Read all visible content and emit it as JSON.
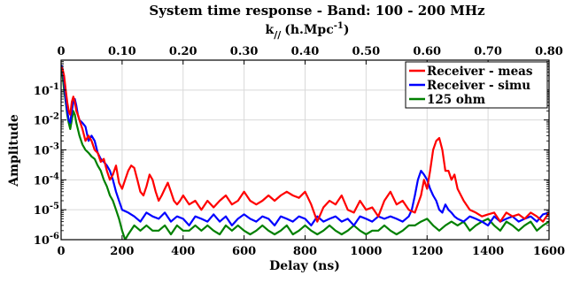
{
  "chart_data": {
    "type": "line",
    "title": "System time response - Band: 100 - 200 MHz",
    "xlabel": "Delay (ns)",
    "ylabel": "Amplitude",
    "top_axis_label_main": "k",
    "top_axis_label_sub": "//",
    "top_axis_label_unit": "(h.Mpc",
    "top_axis_label_exp": "-1",
    "top_axis_label_close": ")",
    "xlim": [
      0,
      1600
    ],
    "ylim": [
      1e-06,
      1
    ],
    "yscale": "log",
    "grid": true,
    "legend_position": "top-right",
    "x_ticks": [
      0,
      200,
      400,
      600,
      800,
      1000,
      1200,
      1400,
      1600
    ],
    "x_tick_labels": [
      "0",
      "200",
      "400",
      "600",
      "800",
      "1000",
      "1200",
      "1400",
      "1600"
    ],
    "top_ticks": [
      0,
      0.1,
      0.2,
      0.3,
      0.4,
      0.5,
      0.6,
      0.7,
      0.8
    ],
    "top_tick_labels": [
      "0",
      "0.10",
      "0.20",
      "0.30",
      "0.40",
      "0.50",
      "0.60",
      "0.70",
      "0.80"
    ],
    "y_ticks": [
      1e-06,
      1e-05,
      0.0001,
      0.001,
      0.01,
      0.1
    ],
    "y_tick_exponents": [
      "-6",
      "-5",
      "-4",
      "-3",
      "-2",
      "-1"
    ],
    "y_tick_base": "10",
    "series": [
      {
        "name": "Receiver - meas",
        "color": "#ff0000",
        "x": [
          0,
          5,
          10,
          15,
          20,
          25,
          30,
          35,
          40,
          45,
          50,
          55,
          60,
          70,
          80,
          90,
          100,
          110,
          120,
          130,
          140,
          150,
          160,
          170,
          180,
          190,
          200,
          210,
          220,
          230,
          240,
          250,
          260,
          270,
          280,
          290,
          300,
          310,
          320,
          330,
          340,
          350,
          360,
          370,
          380,
          390,
          400,
          420,
          440,
          460,
          480,
          500,
          520,
          540,
          560,
          580,
          600,
          620,
          640,
          660,
          680,
          700,
          720,
          740,
          760,
          780,
          800,
          820,
          840,
          860,
          880,
          900,
          920,
          940,
          960,
          980,
          1000,
          1020,
          1040,
          1060,
          1080,
          1100,
          1120,
          1140,
          1160,
          1180,
          1190,
          1200,
          1210,
          1220,
          1230,
          1240,
          1250,
          1260,
          1270,
          1280,
          1290,
          1300,
          1320,
          1340,
          1360,
          1380,
          1400,
          1420,
          1440,
          1460,
          1480,
          1500,
          1520,
          1540,
          1560,
          1580,
          1600
        ],
        "y": [
          0.6,
          0.5,
          0.3,
          0.1,
          0.04,
          0.02,
          0.015,
          0.04,
          0.06,
          0.04,
          0.02,
          0.015,
          0.01,
          0.005,
          0.002,
          0.003,
          0.002,
          0.001,
          0.0008,
          0.0004,
          0.0005,
          0.0002,
          0.0001,
          0.00015,
          0.0003,
          8e-05,
          5e-05,
          0.0001,
          0.0002,
          0.0003,
          0.00025,
          0.0001,
          4e-05,
          3e-05,
          6e-05,
          0.00015,
          0.0001,
          4e-05,
          2e-05,
          3e-05,
          5e-05,
          8e-05,
          4e-05,
          2e-05,
          1.5e-05,
          2e-05,
          3e-05,
          1.5e-05,
          2e-05,
          1e-05,
          2e-05,
          1.2e-05,
          2e-05,
          3e-05,
          1.5e-05,
          2e-05,
          4e-05,
          2e-05,
          1.5e-05,
          2e-05,
          3e-05,
          2e-05,
          3e-05,
          4e-05,
          3e-05,
          2.5e-05,
          4e-05,
          1.5e-05,
          4e-06,
          1.2e-05,
          2e-05,
          1.5e-05,
          3e-05,
          1e-05,
          8e-06,
          2e-05,
          1e-05,
          1.2e-05,
          6e-06,
          2e-05,
          4e-05,
          1.5e-05,
          2e-05,
          1e-05,
          8e-06,
          3e-05,
          0.0001,
          5e-05,
          0.0002,
          0.001,
          0.002,
          0.0025,
          0.001,
          0.0002,
          0.0002,
          0.0001,
          0.00015,
          5e-05,
          2e-05,
          1e-05,
          8e-06,
          6e-06,
          7e-06,
          8e-06,
          4e-06,
          8e-06,
          6e-06,
          7e-06,
          5e-06,
          8e-06,
          6e-06,
          4e-06,
          8e-06
        ]
      },
      {
        "name": "Receiver - simu",
        "color": "#0000ff",
        "x": [
          0,
          5,
          10,
          15,
          20,
          25,
          30,
          35,
          40,
          45,
          50,
          55,
          60,
          70,
          80,
          90,
          100,
          110,
          120,
          130,
          140,
          150,
          160,
          170,
          180,
          190,
          200,
          220,
          240,
          260,
          280,
          300,
          320,
          340,
          360,
          380,
          400,
          420,
          440,
          460,
          480,
          500,
          520,
          540,
          560,
          580,
          600,
          620,
          640,
          660,
          680,
          700,
          720,
          740,
          760,
          780,
          800,
          820,
          840,
          860,
          880,
          900,
          920,
          940,
          960,
          980,
          1000,
          1020,
          1040,
          1060,
          1080,
          1100,
          1120,
          1140,
          1150,
          1160,
          1170,
          1180,
          1190,
          1200,
          1210,
          1220,
          1230,
          1240,
          1250,
          1260,
          1270,
          1280,
          1290,
          1300,
          1320,
          1340,
          1360,
          1380,
          1400,
          1420,
          1440,
          1460,
          1480,
          1500,
          1520,
          1540,
          1560,
          1580,
          1600
        ],
        "y": [
          0.7,
          0.5,
          0.2,
          0.05,
          0.02,
          0.01,
          0.008,
          0.02,
          0.04,
          0.05,
          0.03,
          0.015,
          0.01,
          0.008,
          0.006,
          0.002,
          0.003,
          0.002,
          0.0008,
          0.0005,
          0.0004,
          0.0003,
          0.0002,
          0.0001,
          4e-05,
          2e-05,
          1e-05,
          8e-06,
          6e-06,
          4e-06,
          8e-06,
          6e-06,
          5e-06,
          8e-06,
          4e-06,
          6e-06,
          5e-06,
          3e-06,
          6e-06,
          5e-06,
          4e-06,
          7e-06,
          4e-06,
          6e-06,
          3e-06,
          5e-06,
          7e-06,
          5e-06,
          4e-06,
          6e-06,
          5e-06,
          3e-06,
          6e-06,
          5e-06,
          4e-06,
          6e-06,
          5e-06,
          3e-06,
          6e-06,
          4e-06,
          5e-06,
          6e-06,
          4e-06,
          5e-06,
          3e-06,
          6e-06,
          5e-06,
          4e-06,
          6e-06,
          5e-06,
          6e-06,
          5e-06,
          4e-06,
          6e-06,
          1e-05,
          3e-05,
          0.0001,
          0.0002,
          0.00015,
          0.0001,
          5e-05,
          3e-05,
          2e-05,
          1e-05,
          8e-06,
          1.5e-05,
          1e-05,
          8e-06,
          6e-06,
          5e-06,
          4e-06,
          6e-06,
          5e-06,
          4e-06,
          3e-06,
          6e-06,
          4e-06,
          5e-06,
          6e-06,
          4e-06,
          5e-06,
          6e-06,
          4e-06,
          7e-06,
          8e-06
        ]
      },
      {
        "name": "125 ohm",
        "color": "#008000",
        "x": [
          0,
          5,
          10,
          15,
          20,
          25,
          30,
          35,
          40,
          45,
          50,
          55,
          60,
          70,
          80,
          90,
          100,
          110,
          120,
          130,
          140,
          150,
          160,
          170,
          180,
          190,
          200,
          210,
          220,
          240,
          260,
          280,
          300,
          320,
          340,
          360,
          380,
          400,
          420,
          440,
          460,
          480,
          500,
          520,
          540,
          560,
          580,
          600,
          620,
          640,
          660,
          680,
          700,
          720,
          740,
          760,
          780,
          800,
          820,
          840,
          860,
          880,
          900,
          920,
          940,
          960,
          980,
          1000,
          1020,
          1040,
          1060,
          1080,
          1100,
          1120,
          1140,
          1160,
          1180,
          1200,
          1220,
          1240,
          1260,
          1280,
          1300,
          1320,
          1340,
          1360,
          1380,
          1400,
          1420,
          1440,
          1460,
          1480,
          1500,
          1520,
          1540,
          1560,
          1580,
          1600
        ],
        "y": [
          0.5,
          0.3,
          0.1,
          0.04,
          0.015,
          0.008,
          0.005,
          0.01,
          0.02,
          0.015,
          0.008,
          0.005,
          0.003,
          0.0015,
          0.001,
          0.0008,
          0.0006,
          0.0005,
          0.0003,
          0.0002,
          0.0001,
          6e-05,
          3e-05,
          2e-05,
          1e-05,
          5e-06,
          2e-06,
          1e-06,
          1.5e-06,
          3e-06,
          2e-06,
          3e-06,
          2e-06,
          2e-06,
          3e-06,
          1.5e-06,
          3e-06,
          2e-06,
          2e-06,
          3e-06,
          2e-06,
          3e-06,
          2e-06,
          1.5e-06,
          3e-06,
          2e-06,
          3e-06,
          2e-06,
          1.5e-06,
          2e-06,
          3e-06,
          2e-06,
          1.5e-06,
          2e-06,
          3e-06,
          1.5e-06,
          2e-06,
          3e-06,
          2e-06,
          1.5e-06,
          2e-06,
          3e-06,
          2e-06,
          1.5e-06,
          2e-06,
          3e-06,
          2e-06,
          1.5e-06,
          2e-06,
          2e-06,
          3e-06,
          2e-06,
          1.5e-06,
          2e-06,
          3e-06,
          3e-06,
          4e-06,
          5e-06,
          3e-06,
          2e-06,
          3e-06,
          4e-06,
          3e-06,
          4e-06,
          2e-06,
          3e-06,
          4e-06,
          5e-06,
          3e-06,
          2e-06,
          4e-06,
          3e-06,
          2e-06,
          3e-06,
          4e-06,
          2e-06,
          3e-06,
          4e-06
        ]
      }
    ]
  }
}
